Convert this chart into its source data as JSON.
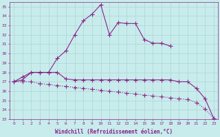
{
  "xlabel": "Windchill (Refroidissement éolien,°C)",
  "ylabel": "",
  "bg_color": "#c8ecec",
  "grid_color": "#b0d8d8",
  "line_color": "#882288",
  "x": [
    0,
    1,
    2,
    3,
    4,
    5,
    6,
    7,
    8,
    9,
    10,
    11,
    12,
    13,
    14,
    15,
    16,
    17,
    18,
    19,
    20,
    21,
    22,
    23
  ],
  "line1": [
    27.0,
    27.5,
    28.0,
    28.0,
    28.0,
    29.5,
    30.3,
    32.0,
    33.5,
    34.2,
    35.2,
    32.0,
    33.3,
    33.2,
    33.2,
    31.5,
    31.1,
    31.1,
    30.8,
    null,
    null,
    null,
    null,
    null
  ],
  "line2": [
    27.0,
    27.2,
    28.0,
    28.0,
    28.0,
    28.0,
    27.3,
    27.2,
    27.2,
    27.2,
    27.2,
    27.2,
    27.2,
    27.2,
    27.2,
    27.2,
    27.2,
    27.2,
    27.2,
    27.0,
    27.0,
    26.3,
    25.2,
    23.1
  ],
  "line3": [
    27.0,
    27.0,
    27.0,
    26.8,
    26.7,
    26.6,
    26.5,
    26.4,
    26.3,
    26.2,
    26.1,
    26.0,
    25.9,
    25.8,
    25.7,
    25.6,
    25.5,
    25.4,
    25.3,
    25.2,
    25.1,
    24.8,
    24.1,
    23.1
  ],
  "ylim": [
    23,
    35.5
  ],
  "xlim": [
    -0.5,
    23.5
  ],
  "yticks": [
    23,
    24,
    25,
    26,
    27,
    28,
    29,
    30,
    31,
    32,
    33,
    34,
    35
  ],
  "xticks": [
    0,
    1,
    2,
    3,
    4,
    5,
    6,
    7,
    8,
    9,
    10,
    11,
    12,
    13,
    14,
    15,
    16,
    17,
    18,
    19,
    20,
    21,
    22,
    23
  ],
  "marker": "+",
  "marker_size": 4,
  "line_width": 0.8
}
